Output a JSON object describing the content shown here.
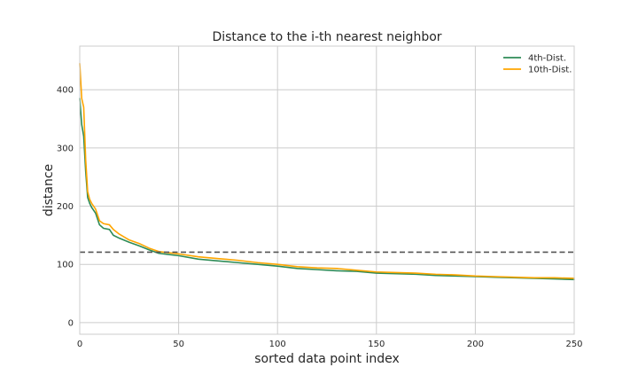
{
  "chart_data": {
    "type": "line",
    "title": "Distance to the i-th nearest neighbor",
    "xlabel": "sorted data point index",
    "ylabel": "distance",
    "xlim": [
      0,
      250
    ],
    "ylim": [
      -20,
      475
    ],
    "xticks": [
      0,
      50,
      100,
      150,
      200,
      250
    ],
    "yticks": [
      0,
      100,
      200,
      300,
      400
    ],
    "grid": true,
    "legend_position": "top-right",
    "threshold": {
      "y": 121,
      "style": "dashed",
      "color": "#555555"
    },
    "series": [
      {
        "name": "4th-Dist.",
        "color": "#2e8b57",
        "x": [
          0,
          1,
          2,
          3,
          4,
          5,
          6,
          8,
          10,
          12,
          15,
          17,
          20,
          25,
          30,
          35,
          40,
          45,
          50,
          60,
          70,
          80,
          90,
          100,
          110,
          120,
          130,
          140,
          150,
          160,
          170,
          180,
          190,
          200,
          210,
          220,
          230,
          240,
          250
        ],
        "y": [
          385,
          340,
          320,
          260,
          215,
          205,
          198,
          188,
          168,
          162,
          160,
          150,
          145,
          138,
          132,
          125,
          119,
          117,
          115,
          109,
          106,
          103,
          100,
          97,
          93,
          91,
          89,
          88,
          85,
          84,
          83,
          81,
          80,
          79,
          78,
          77,
          76,
          75,
          74
        ]
      },
      {
        "name": "10th-Dist.",
        "color": "#ffa500",
        "x": [
          0,
          1,
          2,
          3,
          4,
          5,
          6,
          8,
          10,
          12,
          15,
          17,
          20,
          25,
          30,
          35,
          40,
          45,
          50,
          60,
          70,
          80,
          90,
          100,
          110,
          120,
          130,
          140,
          150,
          160,
          170,
          180,
          190,
          200,
          210,
          220,
          230,
          240,
          250
        ],
        "y": [
          445,
          385,
          370,
          280,
          225,
          212,
          205,
          195,
          175,
          170,
          168,
          160,
          152,
          142,
          136,
          128,
          122,
          120,
          118,
          113,
          110,
          107,
          103,
          100,
          96,
          94,
          93,
          90,
          87,
          86,
          85,
          83,
          82,
          80,
          79,
          78,
          77,
          77,
          76
        ]
      }
    ]
  }
}
